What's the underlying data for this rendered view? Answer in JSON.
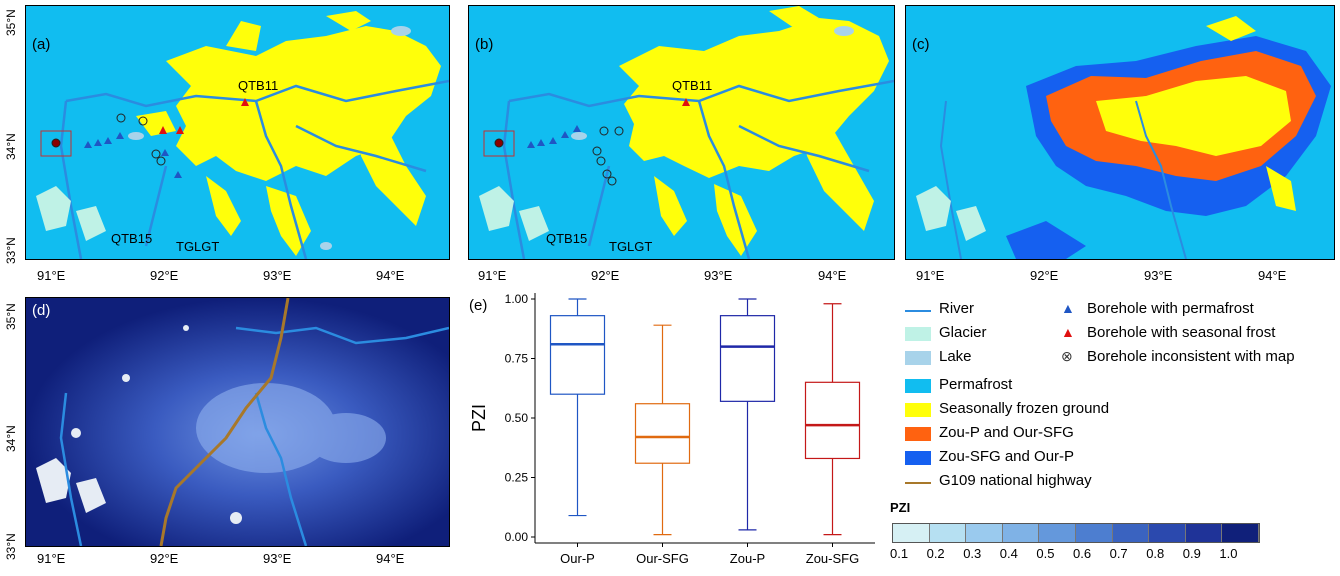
{
  "panels": {
    "a": {
      "letter": "(a)",
      "labels": [
        "QTB11",
        "QTB15",
        "TGLGT"
      ]
    },
    "b": {
      "letter": "(b)",
      "labels": [
        "QTB11",
        "QTB15",
        "TGLGT"
      ]
    },
    "c": {
      "letter": "(c)"
    },
    "d": {
      "letter": "(d)"
    },
    "e": {
      "letter": "(e)"
    }
  },
  "axes": {
    "lon_ticks": [
      "91°E",
      "92°E",
      "93°E",
      "94°E"
    ],
    "lat_ticks": [
      "35°N",
      "34°N",
      "33°N"
    ]
  },
  "chart_data": {
    "type": "box",
    "ylabel": "PZI",
    "ylim": [
      0,
      1
    ],
    "yticks": [
      "0.00",
      "0.25",
      "0.50",
      "0.75",
      "1.00"
    ],
    "categories": [
      "Our-P",
      "Our-SFG",
      "Zou-P",
      "Zou-SFG"
    ],
    "series": [
      {
        "min": 0.09,
        "q1": 0.6,
        "median": 0.81,
        "q3": 0.93,
        "max": 1.0,
        "color": "#1f56c4"
      },
      {
        "min": 0.01,
        "q1": 0.31,
        "median": 0.42,
        "q3": 0.56,
        "max": 0.89,
        "color": "#e06a10"
      },
      {
        "min": 0.03,
        "q1": 0.57,
        "median": 0.8,
        "q3": 0.93,
        "max": 1.0,
        "color": "#1f28a8"
      },
      {
        "min": 0.01,
        "q1": 0.33,
        "median": 0.47,
        "q3": 0.65,
        "max": 0.98,
        "color": "#c41818"
      }
    ]
  },
  "legend": {
    "items": [
      {
        "label": "River",
        "type": "line",
        "color": "#2b8ce0"
      },
      {
        "label": "Glacier",
        "type": "fill",
        "color": "#bff2e6"
      },
      {
        "label": "Lake",
        "type": "fill",
        "color": "#a8d3ea"
      },
      {
        "label": "Permafrost",
        "type": "fill",
        "color": "#11bdf0"
      },
      {
        "label": "Seasonally frozen ground",
        "type": "fill",
        "color": "#ffff0a"
      },
      {
        "label": "Zou-P and Our-SFG",
        "type": "fill",
        "color": "#ff6210"
      },
      {
        "label": "Zou-SFG and Our-P",
        "type": "fill",
        "color": "#1560f0"
      },
      {
        "label": "G109 national highway",
        "type": "line",
        "color": "#a8782a"
      }
    ],
    "symbols": [
      {
        "label": "Borehole with permafrost",
        "glyph": "▲",
        "color": "#1f56c4"
      },
      {
        "label": "Borehole with seasonal frost",
        "glyph": "▲",
        "color": "#e01010"
      },
      {
        "label": "Borehole inconsistent with map",
        "glyph": "⊗",
        "color": "#333333"
      }
    ]
  },
  "pzi_scale": {
    "title": "PZI",
    "ticks": [
      "0.1",
      "0.2",
      "0.3",
      "0.4",
      "0.5",
      "0.6",
      "0.7",
      "0.8",
      "0.9",
      "1.0"
    ],
    "colors": [
      "#d6f0f4",
      "#b6e0f2",
      "#9acaee",
      "#7fb2e6",
      "#6498dc",
      "#4d7ed0",
      "#3a63c0",
      "#2b49ae",
      "#1f3398",
      "#10207a"
    ]
  }
}
